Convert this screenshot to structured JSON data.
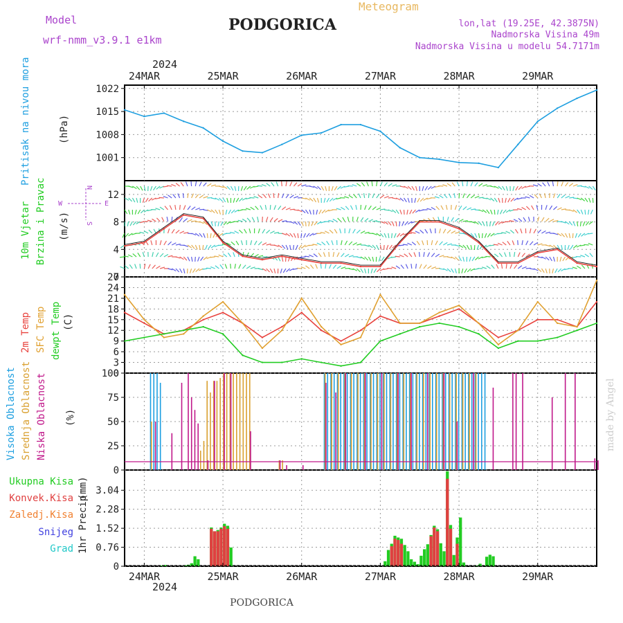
{
  "header": {
    "model_label": "Model",
    "model_name": "wrf-nmm_v3.9.1 e1km",
    "title": "PODGORICA",
    "meteogram_label": "Meteogram",
    "coords": "lon,lat (19.25E, 42.3875N)",
    "altitude": "Nadmorska Visina 49m",
    "model_altitude": "Nadmorska Visina u modelu 54.7171m",
    "footer_title": "PODGORICA",
    "watermark": "made by Angel",
    "year": "2024"
  },
  "colors": {
    "pressure": "#1e9fe0",
    "temp2m": "#e8413c",
    "sfc": "#e0a030",
    "dewpt": "#22cc22",
    "cloud_high": "#1e9fe0",
    "cloud_mid": "#d9a030",
    "cloud_low": "#c0188a",
    "precip_total": "#22cc22",
    "precip_conv": "#e04040",
    "precip_frz": "#f08030",
    "precip_snow": "#4040e0",
    "precip_grad": "#20c8c8",
    "purple": "#aa44cc",
    "gray_title": "#555555"
  },
  "x_axis": {
    "days": [
      "24MAR",
      "25MAR",
      "26MAR",
      "27MAR",
      "28MAR",
      "29MAR"
    ],
    "start_hour_before_first_day": 6,
    "hours_total": 144
  },
  "chart_data": [
    {
      "type": "line",
      "panel": "pressure",
      "ylabel": "Pritisak na nivou mora",
      "unit": "(hPa)",
      "ylim": [
        994,
        1023
      ],
      "yticks": [
        1001,
        1008,
        1015,
        1022
      ],
      "series": [
        {
          "name": "Pritisak",
          "color_key": "pressure",
          "x": [
            0,
            6,
            12,
            18,
            24,
            30,
            36,
            42,
            48,
            54,
            60,
            66,
            72,
            78,
            84,
            90,
            96,
            102,
            108,
            114,
            120,
            126,
            132,
            138,
            144
          ],
          "values": [
            1015.5,
            1013.5,
            1014.5,
            1012,
            1010,
            1006,
            1003,
            1002.5,
            1005,
            1007.8,
            1008.5,
            1011,
            1011,
            1009,
            1004,
            1001,
            1000.5,
            999.5,
            999.3,
            998,
            1005,
            1012,
            1016,
            1019,
            1021.5
          ]
        }
      ]
    },
    {
      "type": "line",
      "panel": "wind",
      "ylabel": "10m Vjetar Brzina i Pravac",
      "unit": "(m/s)",
      "ylim": [
        0,
        14
      ],
      "yticks": [
        0,
        4,
        8,
        12
      ],
      "compass": {
        "w": "W",
        "e": "E",
        "n": "N",
        "s": "S"
      },
      "series": [
        {
          "name": "Brzina",
          "color_key": "temp2m",
          "x": [
            0,
            6,
            12,
            18,
            24,
            30,
            36,
            42,
            48,
            54,
            60,
            66,
            72,
            78,
            84,
            90,
            96,
            102,
            108,
            114,
            120,
            126,
            132,
            138,
            144
          ],
          "values": [
            4.5,
            5,
            7,
            9,
            8.5,
            5,
            3,
            2.5,
            3,
            2.5,
            2,
            2,
            1.5,
            1.5,
            5,
            8,
            8,
            7,
            5,
            2,
            2,
            3.5,
            4,
            2,
            1.5
          ]
        }
      ]
    },
    {
      "type": "line",
      "panel": "temperature",
      "ylabel": "2m Temp / SFC Temp / dewpt Temp",
      "unit": "(C)",
      "ylim": [
        0,
        27
      ],
      "yticks": [
        0,
        3,
        6,
        9,
        12,
        15,
        18,
        21,
        24,
        27
      ],
      "series": [
        {
          "name": "2m Temp",
          "color_key": "temp2m",
          "x": [
            0,
            6,
            12,
            18,
            24,
            30,
            36,
            42,
            48,
            54,
            60,
            66,
            72,
            78,
            84,
            90,
            96,
            102,
            108,
            114,
            120,
            126,
            132,
            138,
            144
          ],
          "values": [
            17,
            14,
            11,
            12,
            15,
            17,
            14,
            10,
            13,
            17,
            12,
            9,
            12,
            16,
            14,
            14,
            16,
            18,
            14,
            10,
            12,
            15,
            15,
            13,
            20
          ]
        },
        {
          "name": "SFC Temp",
          "color_key": "sfc",
          "x": [
            0,
            6,
            12,
            18,
            24,
            30,
            36,
            42,
            48,
            54,
            60,
            66,
            72,
            78,
            84,
            90,
            96,
            102,
            108,
            114,
            120,
            126,
            132,
            138,
            144
          ],
          "values": [
            22,
            15,
            10,
            11,
            16,
            20,
            14,
            7,
            12,
            21,
            13,
            8,
            10,
            22,
            14,
            14,
            17,
            19,
            14,
            8,
            12,
            20,
            14,
            13,
            26
          ]
        },
        {
          "name": "dewpt Temp",
          "color_key": "dewpt",
          "x": [
            0,
            6,
            12,
            18,
            24,
            30,
            36,
            42,
            48,
            54,
            60,
            66,
            72,
            78,
            84,
            90,
            96,
            102,
            108,
            114,
            120,
            126,
            132,
            138,
            144
          ],
          "values": [
            9,
            10,
            11,
            12,
            13,
            11,
            5,
            3,
            3,
            4,
            3,
            2,
            3,
            9,
            11,
            13,
            14,
            13,
            11,
            7,
            9,
            9,
            10,
            12,
            14
          ]
        }
      ]
    },
    {
      "type": "bar",
      "panel": "clouds",
      "ylabel": "Visoka Oblacnost / Srednja Oblacnost / Niska Oblacnost",
      "unit": "(%)",
      "ylim": [
        0,
        100
      ],
      "yticks": [
        0,
        25,
        50,
        75,
        100
      ],
      "series": [
        {
          "name": "Visoka Oblacnost",
          "color_key": "cloud_high",
          "x": [
            8,
            9,
            10,
            11,
            61,
            62,
            63,
            64,
            65,
            66,
            67,
            68,
            69,
            70,
            71,
            72,
            73,
            74,
            75,
            76,
            77,
            78,
            79,
            80,
            81,
            82,
            83,
            84,
            85,
            86,
            87,
            88,
            89,
            90,
            91,
            92,
            93,
            94,
            95,
            96,
            97,
            98,
            99,
            100,
            101,
            102,
            103,
            104,
            105,
            106,
            107,
            108,
            109,
            110
          ],
          "values": [
            100,
            100,
            100,
            90,
            100,
            100,
            100,
            100,
            100,
            100,
            100,
            100,
            100,
            100,
            100,
            100,
            100,
            100,
            100,
            100,
            100,
            100,
            100,
            100,
            100,
            100,
            100,
            100,
            100,
            100,
            100,
            100,
            100,
            100,
            100,
            100,
            100,
            100,
            100,
            100,
            100,
            100,
            100,
            100,
            100,
            100,
            100,
            100,
            100,
            100,
            100,
            100,
            100,
            100
          ]
        },
        {
          "name": "Srednja Oblacnost",
          "color_key": "cloud_mid",
          "x": [
            8,
            23,
            24,
            25,
            26,
            27,
            28,
            29,
            30,
            31,
            32,
            33,
            34,
            35,
            36,
            37,
            38,
            47,
            48,
            61,
            63,
            65,
            67,
            69,
            71,
            73,
            75,
            77,
            79,
            81,
            83,
            85,
            87,
            89,
            91,
            93,
            95,
            97,
            99,
            101,
            103,
            105,
            107
          ],
          "values": [
            50,
            20,
            30,
            92,
            80,
            92,
            92,
            95,
            100,
            100,
            100,
            100,
            100,
            100,
            100,
            100,
            100,
            10,
            10,
            100,
            100,
            100,
            100,
            100,
            100,
            100,
            100,
            100,
            100,
            100,
            100,
            100,
            100,
            100,
            100,
            100,
            100,
            100,
            100,
            100,
            100,
            100,
            100
          ]
        },
        {
          "name": "Niska Oblacnost",
          "color_key": "cloud_low",
          "x": [
            9,
            14,
            17,
            19,
            20,
            21,
            22,
            25,
            27,
            30,
            32,
            38,
            47,
            49,
            54,
            61,
            64,
            67,
            73,
            78,
            83,
            87,
            92,
            97,
            101,
            106,
            112,
            118,
            119,
            121,
            130,
            134,
            137,
            143,
            144
          ],
          "values": [
            50,
            38,
            90,
            100,
            75,
            62,
            48,
            10,
            92,
            100,
            100,
            40,
            10,
            5,
            5,
            90,
            80,
            100,
            100,
            100,
            100,
            100,
            100,
            100,
            50,
            100,
            85,
            100,
            100,
            100,
            75,
            100,
            100,
            12,
            10
          ]
        }
      ]
    },
    {
      "type": "bar",
      "panel": "precip",
      "ylabel": "1hr Precip",
      "unit": "(mm)",
      "ylim": [
        0,
        3.85
      ],
      "yticks": [
        0,
        0.76,
        1.52,
        2.28,
        3.04
      ],
      "legend": [
        "Ukupna Kisa",
        "Konvek.Kisa",
        "Zaledj.Kisa",
        "Snijeg",
        "Grad"
      ],
      "series": [
        {
          "name": "Ukupna Kisa",
          "color_key": "precip_total",
          "x": [
            11,
            12,
            18,
            19,
            20,
            21,
            22,
            26,
            27,
            28,
            29,
            30,
            31,
            32,
            79,
            80,
            81,
            82,
            83,
            84,
            85,
            86,
            87,
            88,
            89,
            90,
            91,
            92,
            93,
            94,
            95,
            96,
            97,
            98,
            99,
            100,
            101,
            102,
            103,
            107,
            108,
            110,
            111,
            112
          ],
          "values": [
            0.03,
            0.05,
            0.04,
            0.06,
            0.12,
            0.4,
            0.28,
            1.55,
            1.4,
            1.45,
            1.55,
            1.7,
            1.62,
            0.75,
            0.2,
            0.65,
            0.9,
            1.22,
            1.15,
            1.1,
            0.85,
            0.6,
            0.28,
            0.18,
            0.08,
            0.42,
            0.68,
            0.88,
            1.25,
            1.62,
            1.48,
            0.92,
            0.6,
            3.8,
            1.65,
            0.45,
            1.15,
            1.95,
            0.15,
            0.02,
            0.1,
            0.38,
            0.46,
            0.4
          ]
        },
        {
          "name": "Konvek.Kisa",
          "color_key": "precip_conv",
          "x": [
            26,
            27,
            28,
            29,
            30,
            31,
            81,
            82,
            83,
            84,
            93,
            94,
            95,
            98,
            99,
            101
          ],
          "values": [
            1.5,
            1.4,
            1.4,
            1.5,
            1.6,
            1.5,
            0.8,
            1.1,
            1.05,
            0.9,
            1.2,
            1.55,
            1.4,
            3.5,
            1.5,
            0.9
          ]
        }
      ]
    }
  ],
  "legends": {
    "clouds": [
      "Visoka Oblacnost",
      "Srednja Oblacnost",
      "Niska Oblacnost"
    ],
    "temp": [
      "2m Temp",
      "SFC Temp",
      "dewpt Temp"
    ],
    "pressure": [
      "Pritisak na nivou mora"
    ],
    "wind": [
      "10m Vjetar",
      "Brzina i Pravac"
    ]
  }
}
